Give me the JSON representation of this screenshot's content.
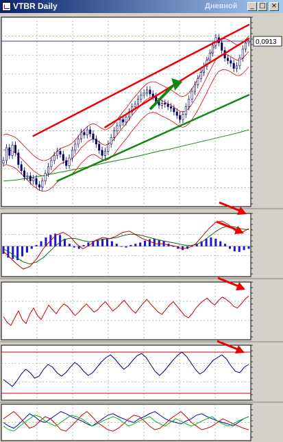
{
  "window": {
    "title": "VTBR Daily",
    "title_right": "Дневной",
    "buttons": [
      {
        "name": "minimize-button",
        "glyph": "_"
      },
      {
        "name": "maximize-button",
        "glyph": "□"
      },
      {
        "name": "close-button",
        "glyph": "×"
      }
    ]
  },
  "chart_data": {
    "type": "line",
    "main": {
      "series_type": "candlestick",
      "current_price_label": "0,0913",
      "close": [
        0.068,
        0.0705,
        0.069,
        0.071,
        0.0695,
        0.0672,
        0.066,
        0.0648,
        0.065,
        0.064,
        0.0645,
        0.0633,
        0.0628,
        0.064,
        0.0655,
        0.0668,
        0.068,
        0.069,
        0.0698,
        0.0692,
        0.068,
        0.067,
        0.0685,
        0.07,
        0.0712,
        0.0722,
        0.0735,
        0.073,
        0.074,
        0.0732,
        0.0722,
        0.0712,
        0.07,
        0.069,
        0.0698,
        0.0712,
        0.0725,
        0.0738,
        0.0748,
        0.076,
        0.0755,
        0.0765,
        0.0775,
        0.0785,
        0.079,
        0.08,
        0.0808,
        0.0812,
        0.0818,
        0.081,
        0.0805,
        0.0795,
        0.0788,
        0.0792,
        0.079,
        0.0785,
        0.0782,
        0.0775,
        0.0768,
        0.076,
        0.077,
        0.0785,
        0.08,
        0.0815,
        0.0828,
        0.084,
        0.0852,
        0.0864,
        0.0876,
        0.089,
        0.0905,
        0.092,
        0.091,
        0.0895,
        0.088,
        0.0875,
        0.087,
        0.086,
        0.0865,
        0.088,
        0.0898,
        0.091,
        0.0913
      ],
      "midline": [
        0.07,
        0.0702,
        0.07,
        0.0698,
        0.0695,
        0.069,
        0.0684,
        0.0678,
        0.0672,
        0.0666,
        0.066,
        0.0656,
        0.0652,
        0.065,
        0.065,
        0.0652,
        0.0656,
        0.0662,
        0.0668,
        0.0673,
        0.0676,
        0.0678,
        0.068,
        0.0684,
        0.069,
        0.0697,
        0.0705,
        0.071,
        0.0716,
        0.072,
        0.0722,
        0.072,
        0.0716,
        0.0712,
        0.071,
        0.0712,
        0.0716,
        0.0722,
        0.073,
        0.0738,
        0.0745,
        0.0752,
        0.076,
        0.0768,
        0.0775,
        0.0782,
        0.0789,
        0.0795,
        0.08,
        0.0803,
        0.0804,
        0.0803,
        0.08,
        0.0797,
        0.0794,
        0.0791,
        0.0788,
        0.0784,
        0.078,
        0.0776,
        0.0775,
        0.0777,
        0.0782,
        0.079,
        0.0799,
        0.0809,
        0.082,
        0.0831,
        0.0843,
        0.0855,
        0.0866,
        0.0877,
        0.0884,
        0.0887,
        0.0888,
        0.0886,
        0.0883,
        0.0879,
        0.0876,
        0.0876,
        0.088,
        0.0886,
        0.0893
      ],
      "band_width": 0.003,
      "long_ma": [
        0.064,
        0.0642,
        0.0646,
        0.065,
        0.0655,
        0.066,
        0.0665,
        0.067,
        0.0676,
        0.0681,
        0.0686,
        0.0692,
        0.0698,
        0.0703,
        0.0709,
        0.0715,
        0.0721,
        0.0727,
        0.0733,
        0.074
      ],
      "ylim": [
        0.059,
        0.096
      ],
      "blue_hline": 0.0913,
      "trend_lines": [
        {
          "color": "#ee0000",
          "from": [
            10,
            0.0728
          ],
          "to": [
            82,
            0.0945
          ]
        },
        {
          "color": "#ee0000",
          "from": [
            34,
            0.0745
          ],
          "to": [
            82,
            0.0918
          ]
        },
        {
          "color": "#118811",
          "from": [
            18,
            0.064
          ],
          "to": [
            82,
            0.0808
          ]
        }
      ],
      "arrow": {
        "color": "#118811",
        "from": [
          49,
          0.078
        ],
        "to": [
          58,
          0.083
        ]
      }
    },
    "macd": {
      "histogram": [
        -0.3,
        -0.45,
        -0.5,
        -0.55,
        -0.4,
        -0.25,
        -0.1,
        0.05,
        0.2,
        0.35,
        0.45,
        0.5,
        0.45,
        0.3,
        0.1,
        -0.05,
        -0.1,
        0.05,
        0.15,
        0.2,
        0.25,
        0.3,
        0.28,
        0.2,
        0.1,
        0.0,
        -0.05,
        0.05,
        0.1,
        0.15,
        0.22,
        0.28,
        0.3,
        0.25,
        0.2,
        0.1,
        0.0,
        -0.1,
        -0.15,
        -0.1,
        0.0,
        0.1,
        0.2,
        0.3,
        0.35,
        0.3,
        0.2,
        0.1,
        -0.1,
        -0.2,
        -0.22,
        -0.15,
        -0.1
      ],
      "line": [
        -0.2,
        -0.45,
        -0.7,
        -0.9,
        -0.8,
        -0.5,
        -0.1,
        0.2,
        0.45,
        0.55,
        0.4,
        0.1,
        -0.1,
        0.05,
        0.25,
        0.35,
        0.3,
        0.4,
        0.55,
        0.6,
        0.45,
        0.3,
        0.2,
        0.1,
        0.1,
        0.05,
        0.0,
        -0.1,
        -0.05,
        0.1,
        0.4,
        0.7,
        0.95,
        1.0,
        0.85,
        0.6,
        0.55,
        0.7
      ],
      "signal": [
        -0.1,
        -0.25,
        -0.45,
        -0.62,
        -0.7,
        -0.62,
        -0.45,
        -0.2,
        0.05,
        0.25,
        0.32,
        0.3,
        0.22,
        0.18,
        0.22,
        0.28,
        0.3,
        0.34,
        0.42,
        0.48,
        0.47,
        0.42,
        0.35,
        0.28,
        0.22,
        0.17,
        0.12,
        0.06,
        0.03,
        0.06,
        0.18,
        0.38,
        0.58,
        0.74,
        0.8,
        0.76,
        0.68,
        0.66
      ],
      "ylim": [
        -1.2,
        1.3
      ]
    },
    "osc1": {
      "values": [
        40,
        30,
        25,
        38,
        50,
        35,
        28,
        45,
        55,
        42,
        35,
        48,
        60,
        52,
        45,
        55,
        62,
        58,
        50,
        42,
        48,
        56,
        62,
        55,
        48,
        52,
        60,
        66,
        58,
        50,
        55,
        62,
        68,
        60,
        52,
        46,
        55,
        63,
        70,
        62,
        55,
        48,
        44,
        52,
        60,
        66,
        58,
        50,
        42,
        38,
        45,
        55,
        62,
        68,
        72,
        65,
        60,
        68,
        74,
        70,
        65,
        58,
        55,
        62,
        70,
        76
      ],
      "ylim": [
        0,
        100
      ]
    },
    "osc2": {
      "values": [
        40,
        35,
        30,
        38,
        48,
        55,
        50,
        42,
        45,
        55,
        62,
        58,
        50,
        45,
        50,
        58,
        65,
        60,
        52,
        46,
        50,
        58,
        66,
        72,
        76,
        70,
        62,
        55,
        60,
        68,
        75,
        78,
        72,
        62,
        52,
        46,
        52,
        60,
        68,
        75,
        80,
        74,
        65,
        55,
        48,
        52,
        60,
        68,
        72,
        76,
        70,
        60,
        52,
        50,
        58,
        62
      ],
      "upper_level": 80,
      "lower_level": 20,
      "ylim": [
        10,
        90
      ]
    },
    "osc3": {
      "series": [
        {
          "color": "#0000cc",
          "values": [
            50,
            45,
            42,
            48,
            55,
            62,
            58,
            52,
            50,
            55,
            60,
            65,
            62,
            58,
            55,
            52,
            48,
            45,
            50,
            55,
            60,
            62,
            58,
            55,
            52,
            50,
            55,
            58,
            62,
            65,
            60,
            55,
            52,
            50,
            48,
            52,
            55,
            60,
            62,
            58,
            55,
            52,
            50,
            48,
            45,
            50,
            55,
            58
          ]
        },
        {
          "color": "#cc0000",
          "values": [
            55,
            60,
            65,
            58,
            50,
            42,
            45,
            52,
            58,
            55,
            48,
            40,
            38,
            45,
            52,
            60,
            65,
            58,
            50,
            45,
            40,
            38,
            42,
            48,
            55,
            60,
            58,
            52,
            45,
            40,
            42,
            48,
            55,
            60,
            65,
            58,
            50,
            45,
            40,
            42,
            45,
            50,
            55,
            52,
            48,
            45,
            42,
            40
          ]
        },
        {
          "color": "#00bb00",
          "values": [
            45,
            40,
            38,
            44,
            50,
            55,
            60,
            58,
            52,
            48,
            45,
            50,
            55,
            60,
            58,
            55,
            50,
            45,
            48,
            52,
            55,
            58,
            55,
            50,
            45,
            48,
            52,
            55,
            58,
            52,
            48,
            45,
            50,
            55,
            52,
            48,
            45,
            48,
            52,
            55,
            58,
            52,
            48,
            45,
            48,
            52,
            55,
            58
          ]
        }
      ],
      "ylim": [
        25,
        75
      ]
    },
    "annotation_arrows": [
      {
        "panel": "macd",
        "color": "#ee0000"
      },
      {
        "panel": "macd",
        "color": "#ee0000"
      },
      {
        "panel": "osc1",
        "color": "#ee0000"
      },
      {
        "panel": "osc2",
        "color": "#ee0000"
      }
    ]
  }
}
